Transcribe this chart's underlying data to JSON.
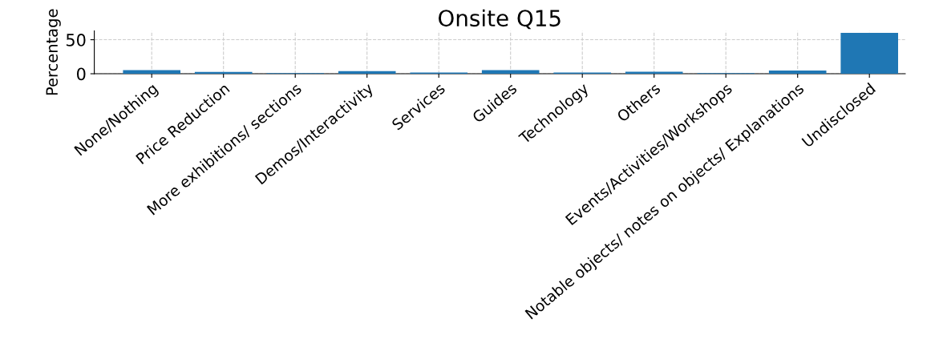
{
  "chart_data": {
    "type": "bar",
    "title": "Onsite Q15",
    "ylabel": "Percentage",
    "categories": [
      "None/Nothing",
      "Price Reduction",
      "More exhibitions/ sections",
      "Demos/Interactivity",
      "Services",
      "Guides",
      "Technology",
      "Others",
      "Events/Activities/Workshops",
      "Notable objects/ notes on objects/ Explanations",
      "Undisclosed"
    ],
    "values": [
      5.2,
      2.6,
      0.9,
      3.9,
      1.7,
      5.2,
      1.7,
      2.9,
      0.8,
      4.6,
      60
    ],
    "color": "#1f77b4",
    "ylim": [
      0,
      63
    ],
    "yticks": [
      0,
      50
    ],
    "grid": true
  }
}
